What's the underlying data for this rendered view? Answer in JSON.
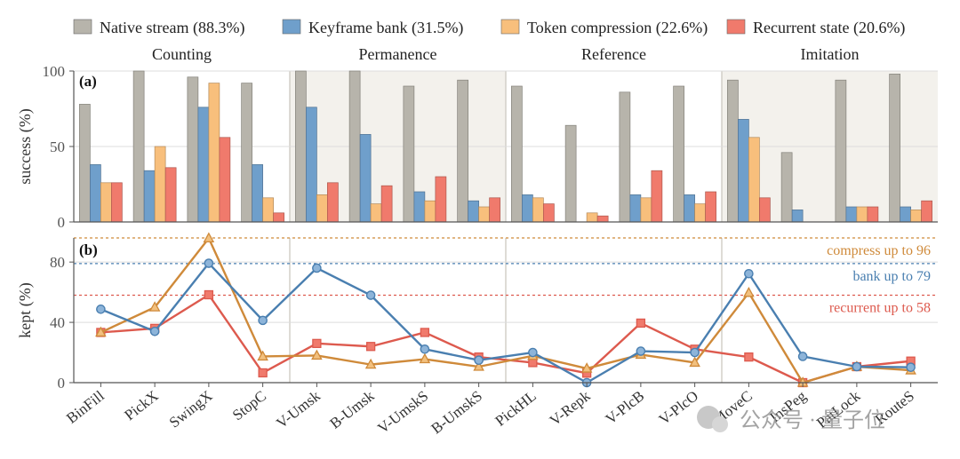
{
  "chart_data": [
    {
      "type": "bar",
      "panel_label": "(a)",
      "ylabel": "success (%)",
      "ylim": [
        0,
        100
      ],
      "yticks": [
        0,
        50,
        100
      ],
      "grid": true,
      "legend_position": "top",
      "groups": [
        {
          "name": "Counting",
          "shaded": false,
          "categories": [
            "BinFill",
            "PickX",
            "SwingX",
            "StopC"
          ]
        },
        {
          "name": "Permanence",
          "shaded": true,
          "categories": [
            "V-Umsk",
            "B-Umsk",
            "V-UmskS",
            "B-UmskS"
          ]
        },
        {
          "name": "Reference",
          "shaded": false,
          "categories": [
            "PickHL",
            "V-Repk",
            "V-PlcB",
            "V-PlcO"
          ]
        },
        {
          "name": "Imitation",
          "shaded": true,
          "categories": [
            "MoveC",
            "InsPeg",
            "PatLock",
            "RouteS"
          ]
        }
      ],
      "categories": [
        "BinFill",
        "PickX",
        "SwingX",
        "StopC",
        "V-Umsk",
        "B-Umsk",
        "V-UmskS",
        "B-UmskS",
        "PickHL",
        "V-Repk",
        "V-PlcB",
        "V-PlcO",
        "MoveC",
        "InsPeg",
        "PatLock",
        "RouteS"
      ],
      "series": [
        {
          "name": "Native stream (88.3%)",
          "color": "#b7b4ab",
          "values": [
            78,
            100,
            96,
            92,
            100,
            100,
            90,
            94,
            90,
            64,
            86,
            90,
            94,
            46,
            94,
            98
          ]
        },
        {
          "name": "Keyframe bank (31.5%)",
          "color": "#6f9fcb",
          "values": [
            38,
            34,
            76,
            38,
            76,
            58,
            20,
            14,
            18,
            0,
            18,
            18,
            68,
            8,
            10,
            10
          ]
        },
        {
          "name": "Token compression (22.6%)",
          "color": "#f8bf7c",
          "values": [
            26,
            50,
            92,
            16,
            18,
            12,
            14,
            10,
            16,
            6,
            16,
            12,
            56,
            0,
            10,
            8
          ]
        },
        {
          "name": "Recurrent state (20.6%)",
          "color": "#f07a6c",
          "values": [
            26,
            36,
            56,
            6,
            26,
            24,
            30,
            16,
            12,
            4,
            34,
            20,
            16,
            0,
            10,
            14
          ]
        }
      ]
    },
    {
      "type": "line",
      "panel_label": "(b)",
      "ylabel": "kept (%)",
      "ylim": [
        0,
        96
      ],
      "yticks": [
        0,
        40,
        80
      ],
      "grid": true,
      "categories": [
        "BinFill",
        "PickX",
        "SwingX",
        "StopC",
        "V-Umsk",
        "B-Umsk",
        "V-UmskS",
        "B-UmskS",
        "PickHL",
        "V-Repk",
        "V-PlcB",
        "V-PlcO",
        "MoveC",
        "InsPeg",
        "PatLock",
        "RouteS"
      ],
      "series": [
        {
          "key": "bank",
          "color": "#4a7fb0",
          "marker": "circle",
          "values": [
            48.7,
            34,
            79.2,
            41.3,
            76,
            58,
            22.2,
            14.9,
            20,
            0,
            20.9,
            20,
            72.3,
            17.4,
            10.6,
            10.2
          ]
        },
        {
          "key": "compress",
          "color": "#cf8a3a",
          "marker": "triangle",
          "values": [
            33.3,
            50,
            95.8,
            17.4,
            18,
            12,
            15.6,
            10.6,
            17.8,
            9.4,
            18.6,
            13.3,
            59.6,
            0,
            10.6,
            8.2
          ]
        },
        {
          "key": "recurrent",
          "color": "#dd5a4e",
          "marker": "square",
          "values": [
            33.3,
            36,
            58.3,
            6.5,
            26,
            24,
            33.3,
            17,
            13.3,
            6.3,
            39.5,
            22.2,
            17,
            0,
            10.6,
            14.3
          ]
        }
      ],
      "reference_lines": [
        {
          "value": 96,
          "color": "#cf8a3a",
          "label": "compress up to 96"
        },
        {
          "value": 79,
          "color": "#4a7fb0",
          "label": "bank up to 79"
        },
        {
          "value": 58,
          "color": "#dd5a4e",
          "label": "recurrent up to 58"
        }
      ]
    }
  ],
  "watermark": {
    "text": "公众号 · 量子位"
  }
}
